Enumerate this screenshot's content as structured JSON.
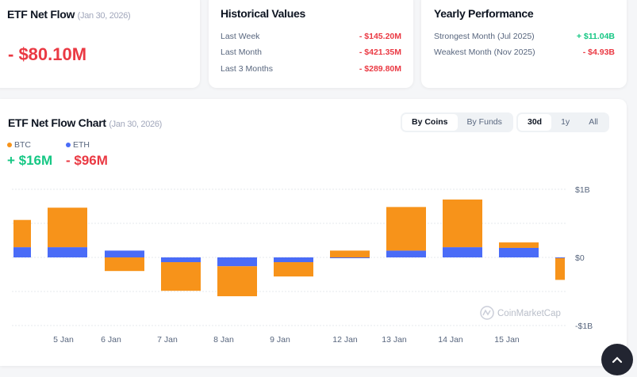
{
  "net_flow": {
    "title": "ETF Net Flow",
    "date": "(Jan 30, 2026)",
    "value": "- $80.10M"
  },
  "historical": {
    "title": "Historical Values",
    "rows": [
      {
        "label": "Last Week",
        "value": "- $145.20M"
      },
      {
        "label": "Last Month",
        "value": "- $421.35M"
      },
      {
        "label": "Last 3 Months",
        "value": "- $289.80M"
      }
    ]
  },
  "yearly": {
    "title": "Yearly Performance",
    "rows": [
      {
        "label": "Strongest Month (Jul 2025)",
        "value": "+ $11.04B"
      },
      {
        "label": "Weakest Month (Nov 2025)",
        "value": "- $4.93B"
      }
    ]
  },
  "chart_section": {
    "title": "ETF Net Flow Chart",
    "date": "(Jan 30, 2026)",
    "group_tabs": [
      "By Coins",
      "By Funds"
    ],
    "active_group": "By Coins",
    "range_tabs": [
      "30d",
      "1y",
      "All"
    ],
    "active_range": "30d",
    "legend": [
      {
        "name": "BTC",
        "value": "+ $16M",
        "color": "#f7931a"
      },
      {
        "name": "ETH",
        "value": "- $96M",
        "color": "#4a6cf7"
      }
    ],
    "watermark": "CoinMarketCap"
  },
  "chart_data": {
    "type": "bar",
    "stacked": true,
    "categories": [
      "",
      "5 Jan",
      "6 Jan",
      "7 Jan",
      "8 Jan",
      "9 Jan",
      "12 Jan",
      "13 Jan",
      "14 Jan",
      "15 Jan",
      ""
    ],
    "series": [
      {
        "name": "ETH",
        "color": "#4a6cf7",
        "values": [
          0.15,
          0.15,
          0.1,
          -0.07,
          -0.13,
          -0.07,
          -0.01,
          0.1,
          0.15,
          0.14,
          -0.01
        ]
      },
      {
        "name": "BTC",
        "color": "#f7931a",
        "values": [
          0.4,
          0.58,
          -0.2,
          -0.42,
          -0.44,
          -0.21,
          0.1,
          0.64,
          0.7,
          0.08,
          -0.32
        ]
      }
    ],
    "unit": "B USD",
    "ylim": [
      -1,
      1
    ],
    "yticks": [
      {
        "v": 1,
        "label": "$1B"
      },
      {
        "v": 0,
        "label": "$0"
      },
      {
        "v": -1,
        "label": "-$1B"
      }
    ],
    "grid": true
  }
}
